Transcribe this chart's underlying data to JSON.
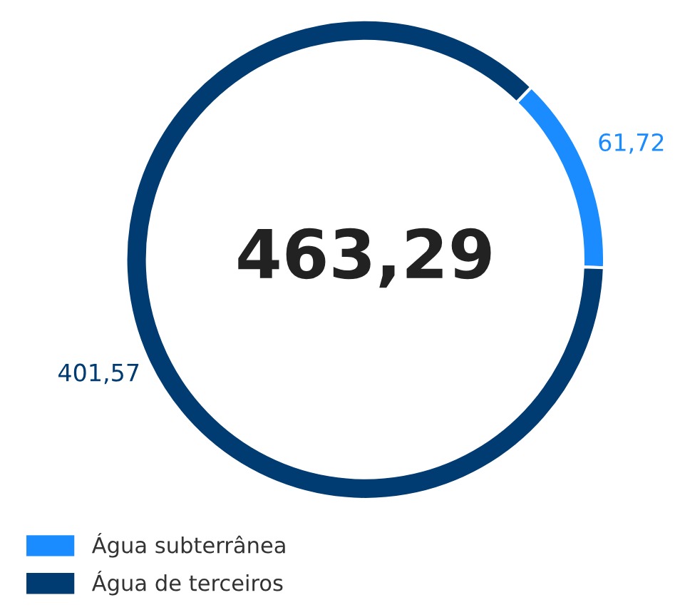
{
  "chart_data": {
    "type": "donut",
    "categories": [
      "Água subterrânea",
      "Água de terceiros"
    ],
    "values": [
      61.72,
      401.57
    ],
    "colors": [
      "#1a8cff",
      "#003b71"
    ],
    "value_labels": [
      "61,72",
      "401,57"
    ],
    "annotations": [
      "463,29"
    ],
    "legend": "bottom left"
  }
}
